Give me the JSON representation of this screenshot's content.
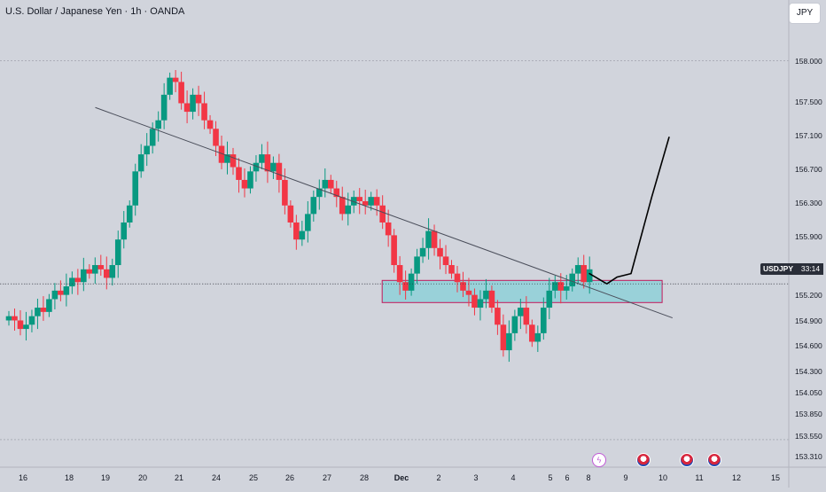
{
  "header": {
    "title": "U.S. Dollar / Japanese Yen · 1h · OANDA",
    "currency_button": "JPY"
  },
  "price_tag": {
    "symbol": "USDJPY",
    "countdown": "33:14"
  },
  "colors": {
    "up": "#089981",
    "down": "#f23645",
    "zone_fill": "#8fd0d8",
    "zone_border": "#c2185b",
    "background": "#d1d4dc"
  },
  "events": [
    {
      "icon": "dividend-icon",
      "date_index": 163.5
    },
    {
      "icon": "us-flag-icon",
      "date_index": 171.0
    },
    {
      "icon": "us-flag-icon",
      "date_index": 181.0
    },
    {
      "icon": "us-flag-icon",
      "date_index": 188.0
    }
  ],
  "chart_data": {
    "type": "candlestick",
    "title": "U.S. Dollar / Japanese Yen · 1h · OANDA",
    "y_ticks": [
      "158.000",
      "157.500",
      "157.100",
      "156.700",
      "156.300",
      "155.900",
      "155.200",
      "154.900",
      "154.600",
      "154.300",
      "154.050",
      "153.850",
      "153.550",
      "153.310"
    ],
    "x_ticks": [
      "16",
      "18",
      "19",
      "20",
      "21",
      "24",
      "25",
      "26",
      "27",
      "28",
      "Dec",
      "2",
      "3",
      "4",
      "5",
      "6",
      "8",
      "9",
      "10",
      "11",
      "12",
      "15"
    ],
    "ylim": [
      153.3,
      158.4
    ],
    "grid": true,
    "current_price": 155.38,
    "closes": [
      155.0,
      154.95,
      154.85,
      154.9,
      155.0,
      155.1,
      155.05,
      155.2,
      155.3,
      155.25,
      155.35,
      155.45,
      155.4,
      155.55,
      155.5,
      155.6,
      155.55,
      155.45,
      155.6,
      155.9,
      156.1,
      156.3,
      156.7,
      156.9,
      157.0,
      157.2,
      157.3,
      157.6,
      157.8,
      157.75,
      157.5,
      157.4,
      157.6,
      157.5,
      157.3,
      157.2,
      157.0,
      156.8,
      156.9,
      156.75,
      156.6,
      156.5,
      156.7,
      156.8,
      156.9,
      156.7,
      156.8,
      156.6,
      156.3,
      156.1,
      155.9,
      156.0,
      156.2,
      156.4,
      156.5,
      156.6,
      156.5,
      156.4,
      156.2,
      156.3,
      156.4,
      156.35,
      156.3,
      156.4,
      156.3,
      156.1,
      155.95,
      155.6,
      155.4,
      155.3,
      155.5,
      155.7,
      155.8,
      156.0,
      155.8,
      155.7,
      155.6,
      155.5,
      155.4,
      155.3,
      155.25,
      155.1,
      155.2,
      155.3,
      155.1,
      154.9,
      154.6,
      154.8,
      155.0,
      155.1,
      154.9,
      154.7,
      154.8,
      155.1,
      155.3,
      155.4,
      155.3,
      155.35,
      155.5,
      155.6,
      155.4,
      155.55
    ],
    "candle_x_range": [
      0,
      168
    ],
    "trendline": {
      "x": [
        25,
        192
      ],
      "y": [
        157.45,
        154.98
      ]
    },
    "zone": {
      "x": [
        108,
        189
      ],
      "y": [
        155.16,
        155.42
      ]
    },
    "projection": {
      "x": [
        168,
        173,
        176,
        180,
        186,
        191
      ],
      "y": [
        155.5,
        155.38,
        155.46,
        155.5,
        156.4,
        157.1
      ]
    }
  }
}
